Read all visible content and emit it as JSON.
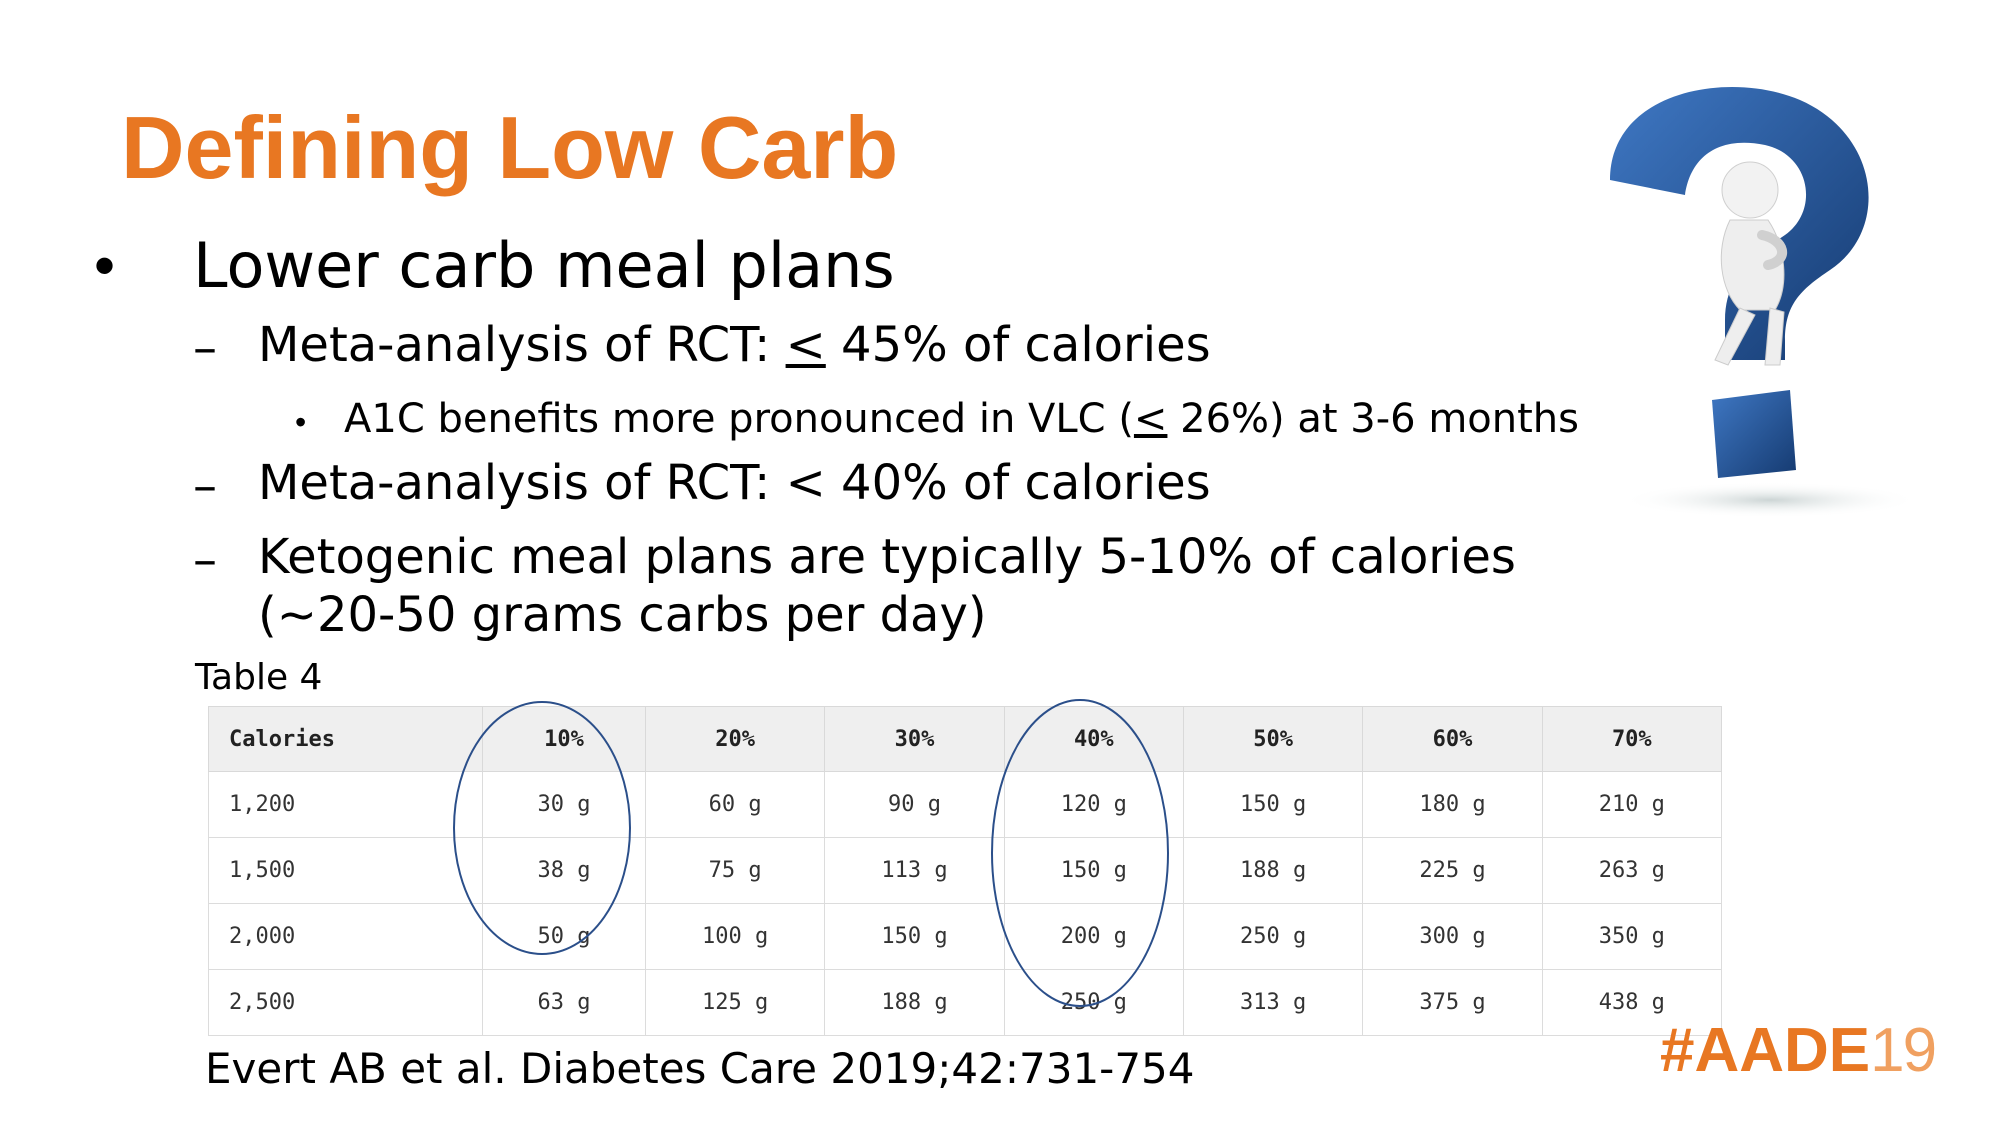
{
  "title": "Defining Low Carb",
  "bullet_main": "Lower carb meal plans",
  "sub1": {
    "prefix": "Meta-analysis of RCT: ",
    "symbol": "<",
    "suffix": " 45% of calories"
  },
  "sub1_detail": {
    "prefix": "A1C benefits more pronounced in VLC (",
    "symbol": "<",
    "suffix": " 26%) at 3-6 months"
  },
  "sub2": "Meta-analysis of RCT: < 40% of calories",
  "sub3": {
    "line1": "Ketogenic meal plans are typically 5-10% of calories",
    "line2": "(~20-50 grams carbs per day)"
  },
  "table": {
    "caption": "Table 4",
    "headers": [
      "Calories",
      "10%",
      "20%",
      "30%",
      "40%",
      "50%",
      "60%",
      "70%"
    ],
    "rows": [
      [
        "1,200",
        "30 g",
        "60 g",
        "90 g",
        "120 g",
        "150 g",
        "180 g",
        "210 g"
      ],
      [
        "1,500",
        "38 g",
        "75 g",
        "113 g",
        "150 g",
        "188 g",
        "225 g",
        "263 g"
      ],
      [
        "2,000",
        "50 g",
        "100 g",
        "150 g",
        "200 g",
        "250 g",
        "300 g",
        "350 g"
      ],
      [
        "2,500",
        "63 g",
        "125 g",
        "188 g",
        "250 g",
        "313 g",
        "375 g",
        "438 g"
      ]
    ],
    "highlighted_columns": [
      "10%",
      "40%"
    ]
  },
  "citation": "Evert AB et al. Diabetes Care 2019;42:731-754",
  "hashtag": {
    "main": "#AADE",
    "year": "19"
  },
  "colors": {
    "title": "#E87722",
    "circle": "#2b4f8a",
    "question_mark": "#1f4e8c"
  },
  "icons": [
    "question-mark-figure-icon"
  ]
}
